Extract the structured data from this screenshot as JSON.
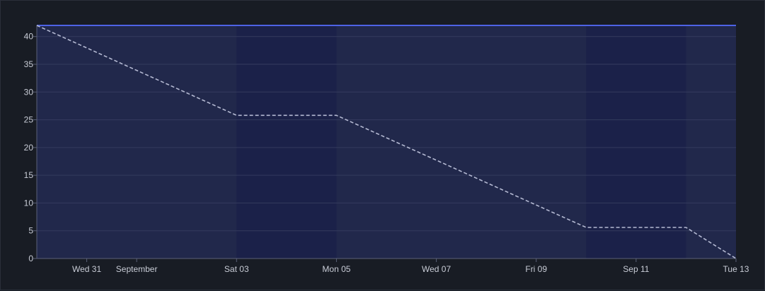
{
  "chart_data": {
    "type": "line",
    "title": "",
    "xlabel": "",
    "ylabel": "",
    "x_domain": [
      "2022-08-30",
      "2022-09-13"
    ],
    "ylim": [
      0,
      42
    ],
    "y_ticks": [
      0,
      5,
      10,
      15,
      20,
      25,
      30,
      35,
      40
    ],
    "y_tick_labels": [
      "0",
      "5",
      "10",
      "15",
      "20",
      "25",
      "30",
      "35",
      "40"
    ],
    "x_ticks": [
      {
        "date": "2022-08-31",
        "label": "Wed 31"
      },
      {
        "date": "2022-09-01",
        "label": "September"
      },
      {
        "date": "2022-09-03",
        "label": "Sat 03"
      },
      {
        "date": "2022-09-05",
        "label": "Mon 05"
      },
      {
        "date": "2022-09-07",
        "label": "Wed 07"
      },
      {
        "date": "2022-09-09",
        "label": "Fri 09"
      },
      {
        "date": "2022-09-11",
        "label": "Sep 11"
      },
      {
        "date": "2022-09-13",
        "label": "Tue 13"
      }
    ],
    "weekend_bands": [
      [
        "2022-09-03",
        "2022-09-05"
      ],
      [
        "2022-09-10",
        "2022-09-12"
      ]
    ],
    "grid": true,
    "legend": "none",
    "series": [
      {
        "style": "solid",
        "color": "#4e63e6",
        "x": [
          "2022-08-30",
          "2022-09-13"
        ],
        "y": [
          42,
          42
        ]
      },
      {
        "style": "dashed",
        "color": "#b4b9d2",
        "x": [
          "2022-08-30",
          "2022-09-03",
          "2022-09-05",
          "2022-09-10",
          "2022-09-12",
          "2022-09-13"
        ],
        "y": [
          42,
          25.8,
          25.8,
          5.6,
          5.6,
          0
        ]
      }
    ],
    "colors": {
      "background": "#181c24",
      "plot_area": "#21284b",
      "weekend_band": "#1b2149",
      "grid": "#343b5e",
      "axis": "#5a6078"
    }
  }
}
